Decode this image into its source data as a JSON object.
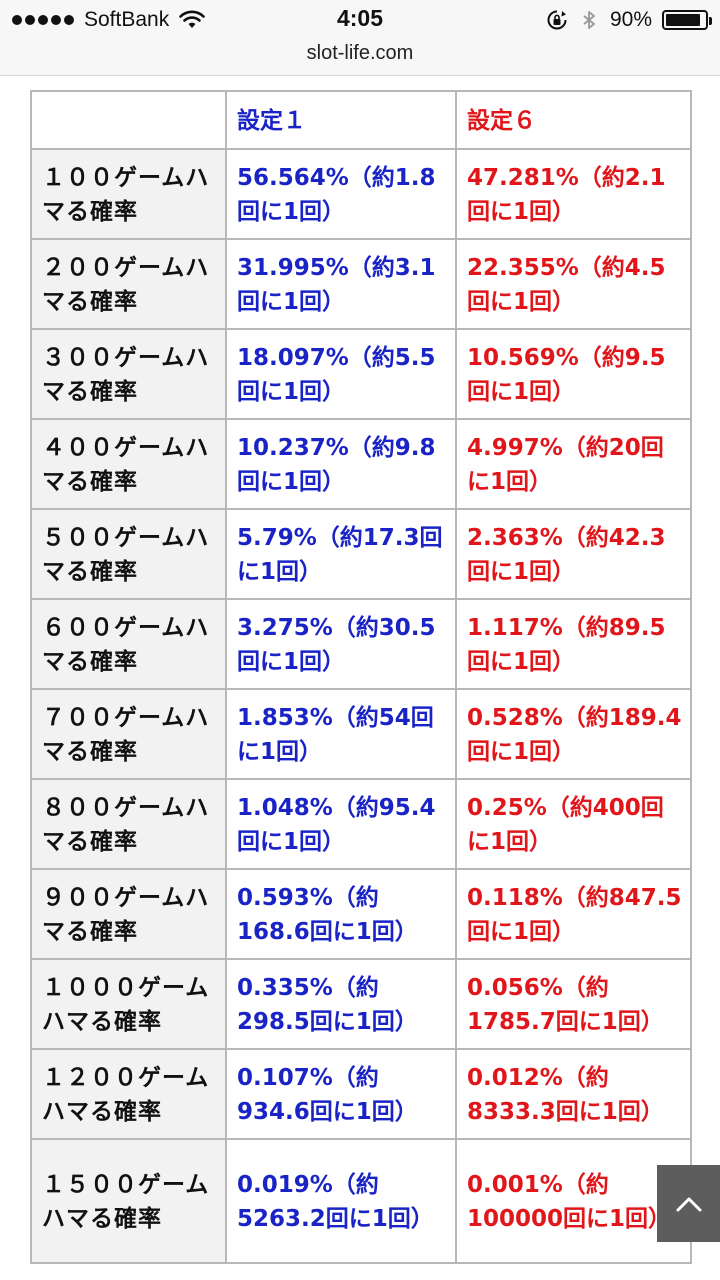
{
  "status_bar": {
    "carrier": "SoftBank",
    "time": "4:05",
    "battery_percent": "90%",
    "battery_level": 0.9,
    "icons": [
      "signal-dots-icon",
      "wifi-icon",
      "rotation-lock-icon",
      "bluetooth-icon",
      "battery-icon"
    ]
  },
  "browser": {
    "url": "slot-life.com"
  },
  "table": {
    "headers": [
      "",
      "設定１",
      "設定６"
    ],
    "rows": [
      {
        "label": "１００ゲームハマる確率",
        "s1": "56.564%（約1.8回に1回）",
        "s6": "47.281%（約2.1回に1回）"
      },
      {
        "label": "２００ゲームハマる確率",
        "s1": "31.995%（約3.1回に1回）",
        "s6": "22.355%（約4.5回に1回）"
      },
      {
        "label": "３００ゲームハマる確率",
        "s1": "18.097%（約5.5回に1回）",
        "s6": "10.569%（約9.5回に1回）"
      },
      {
        "label": "４００ゲームハマる確率",
        "s1": "10.237%（約9.8回に1回）",
        "s6": "4.997%（約20回に1回）"
      },
      {
        "label": "５００ゲームハマる確率",
        "s1": "5.79%（約17.3回に1回）",
        "s6": "2.363%（約42.3回に1回）"
      },
      {
        "label": "６００ゲームハマる確率",
        "s1": "3.275%（約30.5回に1回）",
        "s6": "1.117%（約89.5回に1回）"
      },
      {
        "label": "７００ゲームハマる確率",
        "s1": "1.853%（約54回に1回）",
        "s6": "0.528%（約189.4回に1回）"
      },
      {
        "label": "８００ゲームハマる確率",
        "s1": "1.048%（約95.4回に1回）",
        "s6": "0.25%（約400回に1回）"
      },
      {
        "label": "９００ゲームハマる確率",
        "s1": "0.593%（約168.6回に1回）",
        "s6": "0.118%（約847.5回に1回）"
      },
      {
        "label": "１０００ゲームハマる確率",
        "s1": "0.335%（約298.5回に1回）",
        "s6": "0.056%（約1785.7回に1回）"
      },
      {
        "label": "１２００ゲームハマる確率",
        "s1": "0.107%（約934.6回に1回）",
        "s6": "0.012%（約8333.3回に1回）"
      },
      {
        "label": "１５００ゲームハマる確率",
        "s1": "0.019%（約5263.2回に1回）",
        "s6": "0.001%（約100000回に1回）"
      }
    ]
  },
  "colors": {
    "setting1": "#1a24c6",
    "setting6": "#e0161b",
    "label_bg": "#f2f2f2",
    "border": "#b8b8b8"
  },
  "scroll_top_button": {
    "icon": "chevron-up-icon"
  }
}
